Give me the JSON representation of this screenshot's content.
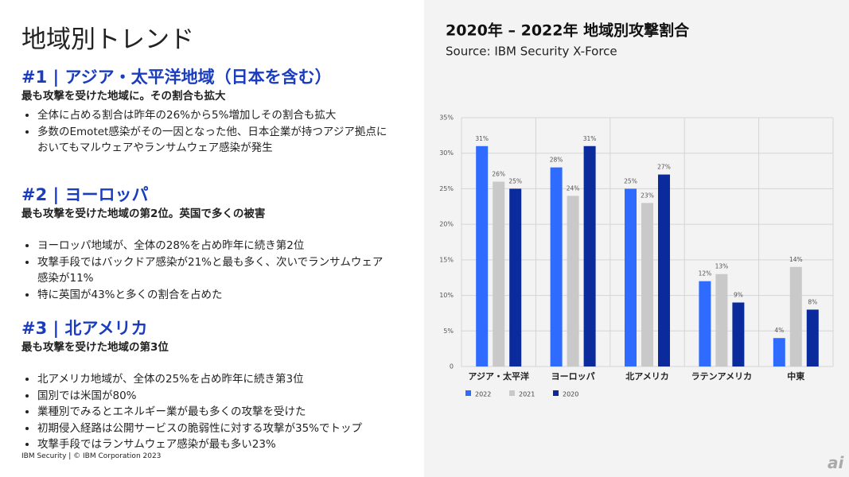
{
  "title": "地域別トレンド",
  "sections": [
    {
      "heading": "#1 | アジア・太平洋地域（日本を含む）",
      "subheading": "最も攻撃を受けた地域に。その割合も拡大",
      "bullets": [
        "全体に占める割合は昨年の26%から5%増加しその割合も拡大",
        "多数のEmotet感染がその一因となった他、日本企業が持つアジア拠点においてもマルウェアやランサムウェア感染が発生"
      ]
    },
    {
      "heading": "#2 | ヨーロッパ",
      "subheading": "最も攻撃を受けた地域の第2位。英国で多くの被害",
      "bullets": [
        "ヨーロッパ地域が、全体の28%を占め昨年に続き第2位",
        "攻撃手段ではバックドア感染が21%と最も多く、次いでランサムウェア感染が11%",
        "特に英国が43%と多くの割合を占めた"
      ]
    },
    {
      "heading": "#3 | 北アメリカ",
      "subheading": "最も攻撃を受けた地域の第3位",
      "bullets": [
        "北アメリカ地域が、全体の25%を占め昨年に続き第3位",
        "国別では米国が80%",
        "業種別でみるとエネルギー業が最も多くの攻撃を受けた",
        "初期侵入経路は公開サービスの脆弱性に対する攻撃が35%でトップ",
        "攻撃手段ではランサムウェア感染が最も多い23%"
      ]
    }
  ],
  "footer": "IBM Security | © IBM Corporation 2023",
  "logo": "ai",
  "chart_data": {
    "type": "bar",
    "title": "2020年 – 2022年 地域別攻撃割合",
    "subtitle": "Source: IBM Security X-Force",
    "categories": [
      "アジア・太平洋",
      "ヨーロッパ",
      "北アメリカ",
      "ラテンアメリカ",
      "中東"
    ],
    "series": [
      {
        "name": "2022",
        "color": "#2f6bff",
        "values": [
          31,
          28,
          25,
          12,
          4
        ],
        "value_labels": [
          "31%",
          "28%",
          "25%",
          "12%",
          "4%"
        ]
      },
      {
        "name": "2021",
        "color": "#c9c9c9",
        "values": [
          26,
          24,
          23,
          13,
          14
        ],
        "value_labels": [
          "26%",
          "24%",
          "23%",
          "13%",
          "14%"
        ]
      },
      {
        "name": "2020",
        "color": "#0b2a9c",
        "values": [
          25,
          31,
          27,
          9,
          8
        ],
        "value_labels": [
          "25%",
          "31%",
          "27%",
          "9%",
          "8%"
        ]
      }
    ],
    "ylim": [
      0,
      35
    ],
    "yticks": [
      0,
      {
        "value": 5,
        "label": "5%"
      },
      {
        "value": 10,
        "label": "10%"
      },
      {
        "value": 15,
        "label": "15%"
      },
      {
        "value": 20,
        "label": "20%"
      },
      {
        "value": 25,
        "label": "25%"
      },
      {
        "value": 30,
        "label": "30%"
      },
      {
        "value": 35,
        "label": "35%"
      }
    ],
    "grid": true
  }
}
